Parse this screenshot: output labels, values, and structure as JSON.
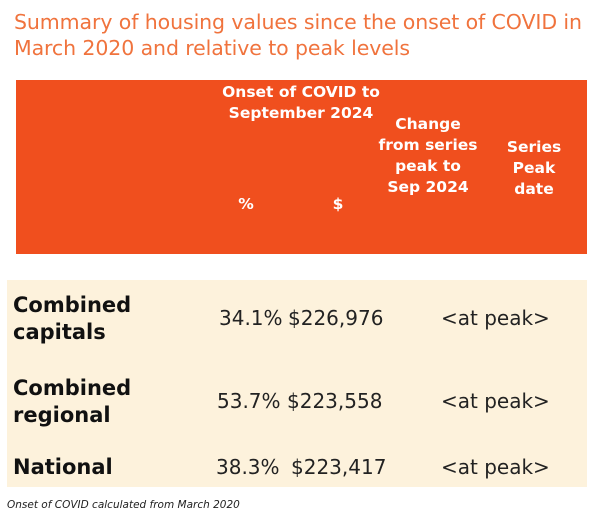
{
  "title": "Summary of housing values since the onset of COVID in March 2020 and relative to peak levels",
  "header": {
    "covid_period": "Onset of COVID to September 2024",
    "pct": "%",
    "dollar": "$",
    "change_from_peak": "Change from series peak to Sep 2024",
    "series_peak_date": "Series Peak date"
  },
  "rows": [
    {
      "label": "Combined capitals",
      "pct": "34.1%",
      "dollar": "$226,976",
      "change": "<at peak>",
      "peak_date": ""
    },
    {
      "label": "Combined regional",
      "pct": "53.7%",
      "dollar": "$223,558",
      "change": "<at peak>",
      "peak_date": ""
    },
    {
      "label": "National",
      "pct": "38.3%",
      "dollar": "$223,417",
      "change": "<at peak>",
      "peak_date": ""
    }
  ],
  "footnote": "Onset of COVID calculated from March 2020",
  "colors": {
    "title": "#f0733d",
    "header_bg": "#f04f1e",
    "body_bg": "#fdf2dc"
  }
}
